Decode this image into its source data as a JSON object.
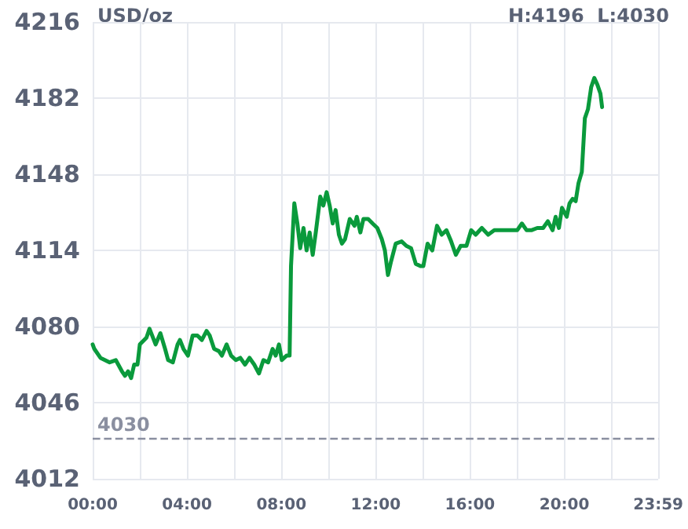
{
  "chart_data": {
    "type": "line",
    "annotations": [
      "USD/oz",
      "H:4196  L:4030"
    ],
    "x": [
      0,
      0.07,
      0.33,
      0.72,
      0.98,
      1.24,
      1.37,
      1.5,
      1.63,
      1.76,
      1.9,
      2.0,
      2.28,
      2.41,
      2.67,
      2.87,
      3.07,
      3.2,
      3.4,
      3.6,
      3.7,
      3.85,
      4.04,
      4.24,
      4.44,
      4.63,
      4.83,
      4.96,
      5.15,
      5.35,
      5.48,
      5.68,
      5.87,
      6.07,
      6.26,
      6.46,
      6.65,
      6.85,
      7.05,
      7.24,
      7.44,
      7.63,
      7.76,
      7.9,
      8.02,
      8.22,
      8.35,
      8.41,
      8.55,
      8.68,
      8.8,
      8.94,
      9.07,
      9.2,
      9.33,
      9.46,
      9.65,
      9.78,
      9.92,
      10.05,
      10.18,
      10.3,
      10.44,
      10.57,
      10.7,
      10.9,
      11.1,
      11.2,
      11.35,
      11.48,
      11.68,
      11.87,
      12.07,
      12.26,
      12.39,
      12.52,
      12.65,
      12.85,
      13.1,
      13.3,
      13.5,
      13.7,
      13.9,
      14.02,
      14.2,
      14.4,
      14.6,
      14.8,
      15.0,
      15.2,
      15.4,
      15.6,
      15.85,
      16.05,
      16.24,
      16.5,
      16.77,
      17.03,
      17.68,
      18.0,
      18.2,
      18.4,
      18.6,
      18.85,
      19.1,
      19.3,
      19.5,
      19.63,
      19.77,
      19.9,
      20.1,
      20.22,
      20.35,
      20.48,
      20.6,
      20.74,
      20.87,
      21.0,
      21.14,
      21.27,
      21.4,
      21.53,
      21.6
    ],
    "series": [
      {
        "color": "#0a9a3c",
        "values": [
          4072,
          4070,
          4066,
          4064,
          4065,
          4060,
          4058,
          4060,
          4057,
          4063,
          4063,
          4072,
          4075,
          4079,
          4072,
          4077,
          4070,
          4065,
          4064,
          4072,
          4074,
          4070,
          4067,
          4076,
          4076,
          4074,
          4078,
          4076,
          4070,
          4069,
          4067,
          4072,
          4067,
          4065,
          4066,
          4063,
          4066,
          4063,
          4059,
          4065,
          4064,
          4070,
          4067,
          4072,
          4065,
          4067,
          4067,
          4107,
          4135,
          4126,
          4115,
          4124,
          4114,
          4122,
          4112,
          4122,
          4138,
          4134,
          4140,
          4134,
          4126,
          4132,
          4121,
          4117,
          4119,
          4128,
          4125,
          4129,
          4122,
          4128,
          4128,
          4126,
          4124,
          4119,
          4114,
          4103,
          4109,
          4117,
          4118,
          4116,
          4115,
          4108,
          4107,
          4107,
          4117,
          4114,
          4125,
          4121,
          4123,
          4118,
          4112,
          4116,
          4116,
          4123,
          4121,
          4124,
          4121,
          4123,
          4123,
          4123,
          4126,
          4123,
          4123,
          4124,
          4124,
          4127,
          4123,
          4129,
          4124,
          4133,
          4129,
          4135,
          4137,
          4136,
          4144,
          4149,
          4173,
          4177,
          4187,
          4191,
          4188,
          4184,
          4178
        ]
      }
    ],
    "xlim": [
      0,
      23.983
    ],
    "xticks": [
      {
        "value": 0,
        "label": "00:00"
      },
      {
        "value": 2,
        "label": null
      },
      {
        "value": 4,
        "label": "04:00"
      },
      {
        "value": 6,
        "label": null
      },
      {
        "value": 8,
        "label": "08:00"
      },
      {
        "value": 10,
        "label": null
      },
      {
        "value": 12,
        "label": "12:00"
      },
      {
        "value": 14,
        "label": null
      },
      {
        "value": 16,
        "label": "16:00"
      },
      {
        "value": 18,
        "label": null
      },
      {
        "value": 20,
        "label": "20:00"
      },
      {
        "value": 22,
        "label": null
      },
      {
        "value": 23.983,
        "label": "23:59"
      }
    ],
    "ylim": [
      4012,
      4216
    ],
    "yticks": [
      4012,
      4046,
      4080,
      4114,
      4148,
      4182,
      4216
    ],
    "ref_lines": [
      {
        "axis": "y",
        "value": 4030,
        "label": "4030",
        "color": "#8a8fa0",
        "line_style": "dashed"
      }
    ],
    "grid": true,
    "marker": "none",
    "line_style": "solid"
  }
}
